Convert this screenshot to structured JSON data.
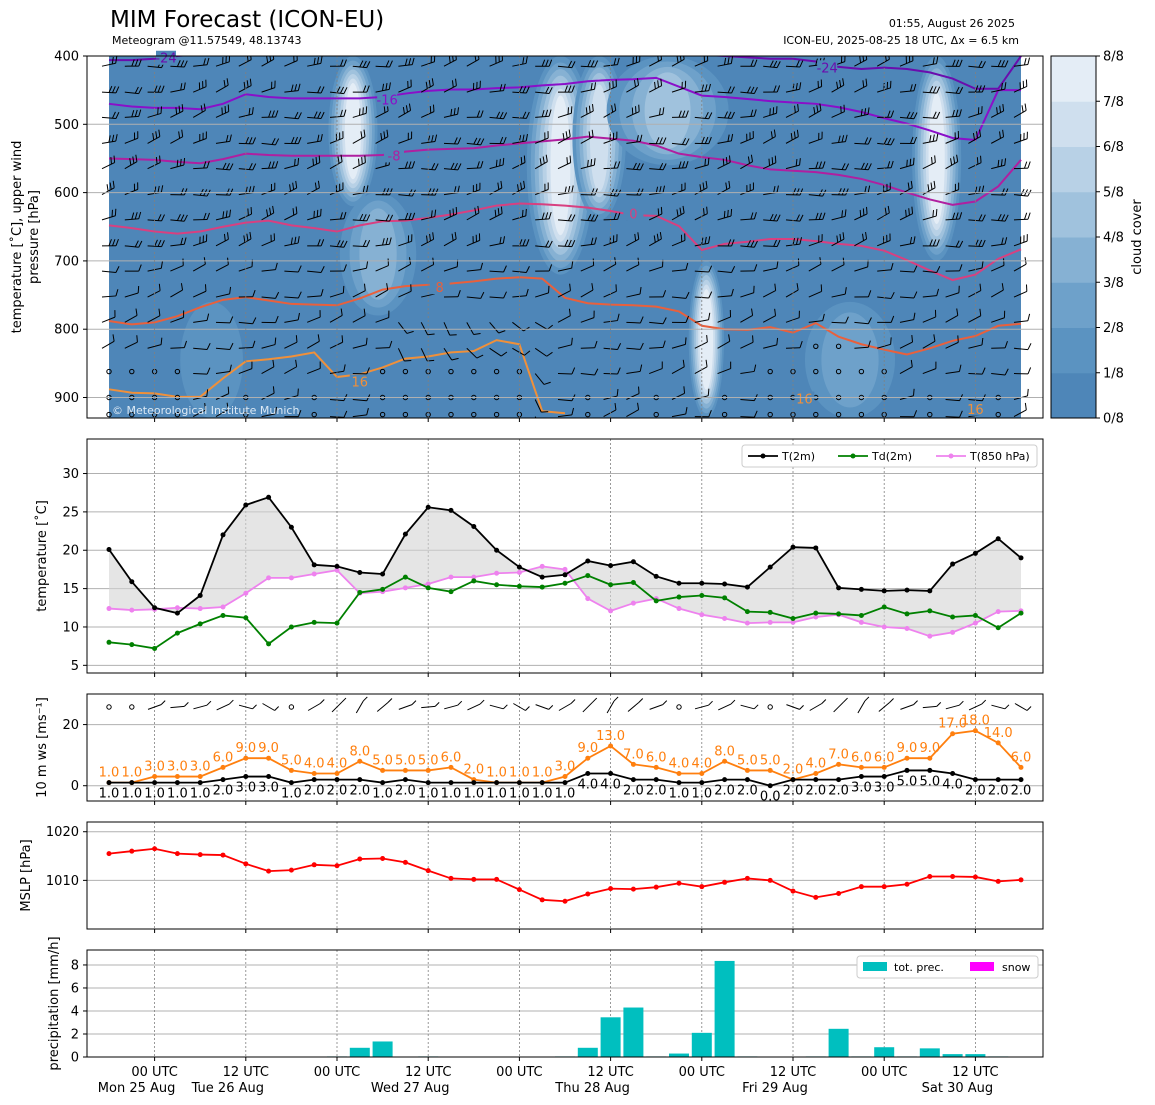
{
  "header": {
    "title": "MIM Forecast (ICON-EU)",
    "subtitle": "Meteogram @11.57549, 48.13743",
    "issued": "01:55, August 26 2025",
    "run": "ICON-EU, 2025-08-25 18 UTC, Δx = 6.5 km"
  },
  "colors": {
    "t2m": "#000000",
    "td2m": "#008000",
    "t850": "#ee82ee",
    "gust": "#ff7f0e",
    "mslp": "#ff0000",
    "precip": "#00bfbf",
    "snow": "#ff00ff",
    "cloud_base": "#4e86b8"
  },
  "chart_data": [
    {
      "type": "heatmap",
      "name": "upper-air",
      "ylabel": "temperature [˚C], upper wind\npressure [hPa]",
      "yticks": [
        400,
        500,
        600,
        700,
        800,
        900
      ],
      "ylim": [
        930,
        400
      ],
      "colorbar_label": "cloud cover",
      "colorbar_ticks": [
        "0/8",
        "1/8",
        "2/8",
        "3/8",
        "4/8",
        "5/8",
        "6/8",
        "7/8",
        "8/8"
      ],
      "credit": "© Meteorological Institute Munich",
      "contour_labels": [
        "-24",
        "-24",
        "-16",
        "-8",
        "0",
        "8",
        "16",
        "16",
        "16"
      ],
      "isotherms": [
        {
          "label": "-24",
          "color": "#6a0dad",
          "x": [
            0,
            1,
            2,
            3,
            4,
            5,
            6,
            7,
            8,
            9,
            10,
            11,
            12,
            13,
            14,
            15,
            16,
            17,
            18,
            19,
            20,
            21,
            22,
            23,
            24,
            25,
            26,
            27,
            28,
            29,
            30,
            31,
            32,
            33,
            34,
            35,
            36,
            37,
            38,
            39,
            40
          ],
          "y": [
            406,
            406,
            404,
            400,
            395,
            392,
            390,
            390,
            390,
            392,
            393,
            392,
            390,
            392,
            392,
            393,
            392,
            390,
            388,
            388,
            388,
            388,
            390,
            390,
            392,
            392,
            398,
            400,
            402,
            404,
            404,
            408,
            416,
            419,
            417,
            419,
            424,
            433,
            448,
            448,
            400
          ]
        },
        {
          "label": "-16",
          "color": "#8a0fc9",
          "x": [
            0,
            1,
            2,
            3,
            4,
            5,
            6,
            7,
            8,
            9,
            10,
            11,
            12,
            13,
            14,
            15,
            16,
            17,
            18,
            19,
            20,
            21,
            22,
            23,
            24,
            25,
            26,
            27,
            28,
            29,
            30,
            31,
            32,
            33,
            34,
            35,
            36,
            37,
            38,
            39,
            40
          ],
          "y": [
            470,
            474,
            476,
            476,
            478,
            470,
            456,
            460,
            462,
            462,
            462,
            462,
            460,
            455,
            451,
            449,
            449,
            447,
            446,
            443,
            441,
            437,
            435,
            434,
            432,
            445,
            458,
            460,
            463,
            466,
            468,
            470,
            475,
            482,
            491,
            499,
            509,
            520,
            523,
            450,
            450
          ]
        },
        {
          "label": "-8",
          "color": "#b01fa0",
          "x": [
            0,
            1,
            2,
            3,
            4,
            5,
            6,
            7,
            8,
            9,
            10,
            11,
            12,
            13,
            14,
            15,
            16,
            17,
            18,
            19,
            20,
            21,
            22,
            23,
            24,
            25,
            26,
            27,
            28,
            29,
            30,
            31,
            32,
            33,
            34,
            35,
            36,
            37,
            38,
            39,
            40
          ],
          "y": [
            550,
            551,
            552,
            555,
            557,
            551,
            543,
            545,
            546,
            546,
            546,
            546,
            545,
            540,
            537,
            536,
            535,
            531,
            528,
            525,
            522,
            518,
            521,
            524,
            531,
            543,
            548,
            552,
            560,
            566,
            568,
            570,
            574,
            580,
            589,
            600,
            610,
            618,
            613,
            591,
            552
          ]
        },
        {
          "label": "0",
          "color": "#d84080",
          "x": [
            0,
            1,
            2,
            3,
            4,
            5,
            6,
            7,
            8,
            9,
            10,
            11,
            12,
            13,
            14,
            15,
            16,
            17,
            18,
            19,
            20,
            21,
            22,
            23,
            24,
            25,
            26,
            27,
            28,
            29,
            30,
            31,
            32,
            33,
            34,
            35,
            36,
            37,
            38,
            39,
            40
          ],
          "y": [
            648,
            652,
            657,
            660,
            657,
            650,
            644,
            641,
            648,
            652,
            657,
            648,
            642,
            641,
            637,
            632,
            626,
            619,
            616,
            617,
            619,
            622,
            627,
            633,
            634,
            649,
            684,
            675,
            672,
            668,
            668,
            671,
            675,
            678,
            685,
            699,
            714,
            728,
            720,
            697,
            683
          ]
        },
        {
          "label": "8",
          "color": "#e9603c",
          "x": [
            0,
            1,
            2,
            3,
            4,
            5,
            6,
            7,
            8,
            9,
            10,
            11,
            12,
            13,
            14,
            15,
            16,
            17,
            18,
            19,
            20,
            21,
            22,
            23,
            24,
            25,
            26,
            27,
            28,
            29,
            30,
            31,
            32,
            33,
            34,
            35,
            36,
            37,
            38,
            39,
            40
          ],
          "y": [
            788,
            793,
            790,
            781,
            768,
            757,
            753,
            758,
            763,
            764,
            765,
            755,
            742,
            737,
            735,
            733,
            730,
            726,
            724,
            726,
            754,
            762,
            764,
            765,
            767,
            774,
            795,
            800,
            801,
            797,
            805,
            791,
            811,
            822,
            830,
            837,
            828,
            817,
            810,
            795,
            792
          ]
        },
        {
          "label": "16",
          "color": "#f0903a",
          "x": [
            0,
            1,
            2,
            3,
            4,
            5,
            6,
            7,
            8,
            9,
            10,
            11,
            12,
            13,
            14,
            15,
            16,
            17,
            18,
            19,
            20
          ],
          "y": [
            888,
            893,
            894,
            899,
            899,
            872,
            847,
            844,
            840,
            834,
            870,
            866,
            856,
            843,
            840,
            834,
            832,
            816,
            822,
            920,
            923
          ]
        }
      ]
    },
    {
      "type": "line",
      "name": "temperature",
      "ylabel": "temperature [˚C]",
      "yticks": [
        5,
        10,
        15,
        20,
        25,
        30
      ],
      "ylim": [
        4,
        34.5
      ],
      "grid": true,
      "legend_position": "top-right",
      "series": [
        {
          "name": "T(2m)",
          "values": [
            20.1,
            15.9,
            12.5,
            11.8,
            14.1,
            22.0,
            25.9,
            26.9,
            23.0,
            18.1,
            17.9,
            17.1,
            16.9,
            22.1,
            25.6,
            25.2,
            23.1,
            20.0,
            17.8,
            16.5,
            16.8,
            18.6,
            18.0,
            18.5,
            16.6,
            15.7,
            15.7,
            15.6,
            15.2,
            17.8,
            20.4,
            20.3,
            15.1,
            14.9,
            14.7,
            14.8,
            14.7,
            18.2,
            19.6,
            21.5,
            19.0
          ]
        },
        {
          "name": "Td(2m)",
          "values": [
            8.0,
            7.7,
            7.2,
            9.2,
            10.4,
            11.5,
            11.2,
            7.8,
            10.0,
            10.6,
            10.5,
            14.5,
            14.9,
            16.5,
            15.1,
            14.6,
            16.0,
            15.5,
            15.3,
            15.2,
            15.7,
            16.7,
            15.5,
            15.8,
            13.4,
            13.9,
            14.1,
            13.8,
            12.0,
            11.9,
            11.1,
            11.8,
            11.7,
            11.5,
            12.6,
            11.7,
            12.1,
            11.3,
            11.5,
            9.9,
            11.8
          ]
        },
        {
          "name": "T(850 hPa)",
          "values": [
            12.4,
            12.2,
            12.3,
            12.5,
            12.4,
            12.6,
            14.4,
            16.4,
            16.4,
            16.9,
            17.4,
            14.4,
            14.6,
            15.1,
            15.6,
            16.5,
            16.5,
            17.0,
            17.1,
            17.9,
            17.5,
            13.7,
            12.1,
            13.1,
            13.7,
            12.4,
            11.6,
            11.1,
            10.5,
            10.6,
            10.6,
            11.3,
            11.6,
            10.6,
            10.0,
            9.8,
            8.8,
            9.3,
            10.5,
            12.0,
            12.1
          ]
        }
      ]
    },
    {
      "type": "line",
      "name": "wind",
      "ylabel": "10 m ws [ms⁻¹]",
      "yticks": [
        0,
        20
      ],
      "ylim": [
        -5,
        30
      ],
      "grid": true,
      "series": [
        {
          "name": "wind speed",
          "values": [
            1,
            1,
            1,
            1,
            1,
            2,
            3,
            3,
            1,
            2,
            2,
            2,
            1,
            2,
            1,
            1,
            1,
            1,
            1,
            1,
            1,
            4,
            4,
            2,
            2,
            1,
            1,
            2,
            2,
            0,
            2,
            2,
            2,
            3,
            3,
            5,
            5,
            4,
            2,
            2,
            2
          ]
        },
        {
          "name": "gust",
          "values": [
            1,
            1,
            3,
            3,
            3,
            6,
            9,
            9,
            5,
            4,
            4,
            8,
            5,
            5,
            5,
            6,
            2,
            1,
            1,
            1,
            3,
            9,
            13,
            7,
            6,
            4,
            4,
            8,
            5,
            5,
            2,
            4,
            7,
            6,
            6,
            9,
            9,
            17,
            18,
            14,
            6
          ]
        }
      ],
      "speed_labels": [
        "1.0",
        "1.0",
        "1.0",
        "1.0",
        "1.0",
        "2.0",
        "3.0",
        "3.0",
        "1.0",
        "2.0",
        "2.0",
        "2.0",
        "1.0",
        "2.0",
        "1.0",
        "1.0",
        "1.0",
        "1.0",
        "1.0",
        "1.0",
        "1.0",
        "4.0",
        "4.0",
        "2.0",
        "2.0",
        "1.0",
        "1.0",
        "2.0",
        "2.0",
        "0.0",
        "2.0",
        "2.0",
        "2.0",
        "3.0",
        "3.0",
        "5.0",
        "5.0",
        "4.0",
        "2.0",
        "2.0",
        "2.0"
      ],
      "gust_labels": [
        "1.0",
        "1.0",
        "3.0",
        "3.0",
        "3.0",
        "6.0",
        "9.0",
        "9.0",
        "5.0",
        "4.0",
        "4.0",
        "8.0",
        "5.0",
        "5.0",
        "5.0",
        "6.0",
        "2.0",
        "1.0",
        "1.0",
        "1.0",
        "3.0",
        "9.0",
        "13.0",
        "7.0",
        "6.0",
        "4.0",
        "4.0",
        "8.0",
        "5.0",
        "5.0",
        "2.0",
        "4.0",
        "7.0",
        "6.0",
        "6.0",
        "9.0",
        "9.0",
        "17.0",
        "18.0",
        "14.0",
        "6.0"
      ]
    },
    {
      "type": "line",
      "name": "pressure",
      "ylabel": "MSLP [hPa]",
      "yticks": [
        1010,
        1020
      ],
      "ylim": [
        1000,
        1022
      ],
      "grid": true,
      "series": [
        {
          "name": "MSLP",
          "values": [
            1015.5,
            1016.0,
            1016.5,
            1015.5,
            1015.3,
            1015.2,
            1013.4,
            1011.9,
            1012.1,
            1013.2,
            1013.0,
            1014.4,
            1014.5,
            1013.7,
            1012.0,
            1010.4,
            1010.2,
            1010.2,
            1008.1,
            1006.0,
            1005.7,
            1007.2,
            1008.3,
            1008.2,
            1008.6,
            1009.4,
            1008.7,
            1009.6,
            1010.4,
            1010.0,
            1007.8,
            1006.5,
            1007.3,
            1008.7,
            1008.7,
            1009.2,
            1010.8,
            1010.8,
            1010.7,
            1009.8,
            1010.1
          ]
        }
      ]
    },
    {
      "type": "bar",
      "name": "precipitation",
      "ylabel": "precipitation [mm/h]",
      "yticks": [
        0,
        2,
        4,
        6,
        8
      ],
      "ylim": [
        0,
        9.3
      ],
      "grid": true,
      "legend_position": "top-right",
      "series": [
        {
          "name": "tot. prec.",
          "values": [
            0,
            0,
            0,
            0,
            0,
            0,
            0,
            0,
            0,
            0,
            0.05,
            0.8,
            1.35,
            0,
            0.05,
            0,
            0,
            0,
            0,
            0,
            0.05,
            0.8,
            3.45,
            4.3,
            0.05,
            0.3,
            2.1,
            8.35,
            0.05,
            0,
            0,
            0.05,
            2.45,
            0.05,
            0.85,
            0.05,
            0.75,
            0.25,
            0.25,
            0.05,
            0
          ]
        },
        {
          "name": "snow",
          "values": [
            0,
            0,
            0,
            0,
            0,
            0,
            0,
            0,
            0,
            0,
            0,
            0,
            0,
            0,
            0,
            0,
            0,
            0,
            0,
            0,
            0,
            0,
            0,
            0,
            0,
            0,
            0,
            0,
            0,
            0,
            0,
            0,
            0,
            0,
            0,
            0,
            0,
            0,
            0,
            0,
            0
          ]
        }
      ]
    }
  ],
  "time_axis": {
    "step_hours": 3,
    "tick_labels": [
      {
        "line1": "00 UTC",
        "line2": "Mon 25 Aug"
      },
      {
        "line1": "12 UTC",
        "line2": "Tue 26 Aug"
      },
      {
        "line1": "00 UTC",
        "line2": ""
      },
      {
        "line1": "12 UTC",
        "line2": "Wed 27 Aug"
      },
      {
        "line1": "00 UTC",
        "line2": ""
      },
      {
        "line1": "12 UTC",
        "line2": "Thu 28 Aug"
      },
      {
        "line1": "00 UTC",
        "line2": ""
      },
      {
        "line1": "12 UTC",
        "line2": "Fri 29 Aug"
      },
      {
        "line1": "00 UTC",
        "line2": ""
      },
      {
        "line1": "12 UTC",
        "line2": "Sat 30 Aug"
      }
    ]
  }
}
